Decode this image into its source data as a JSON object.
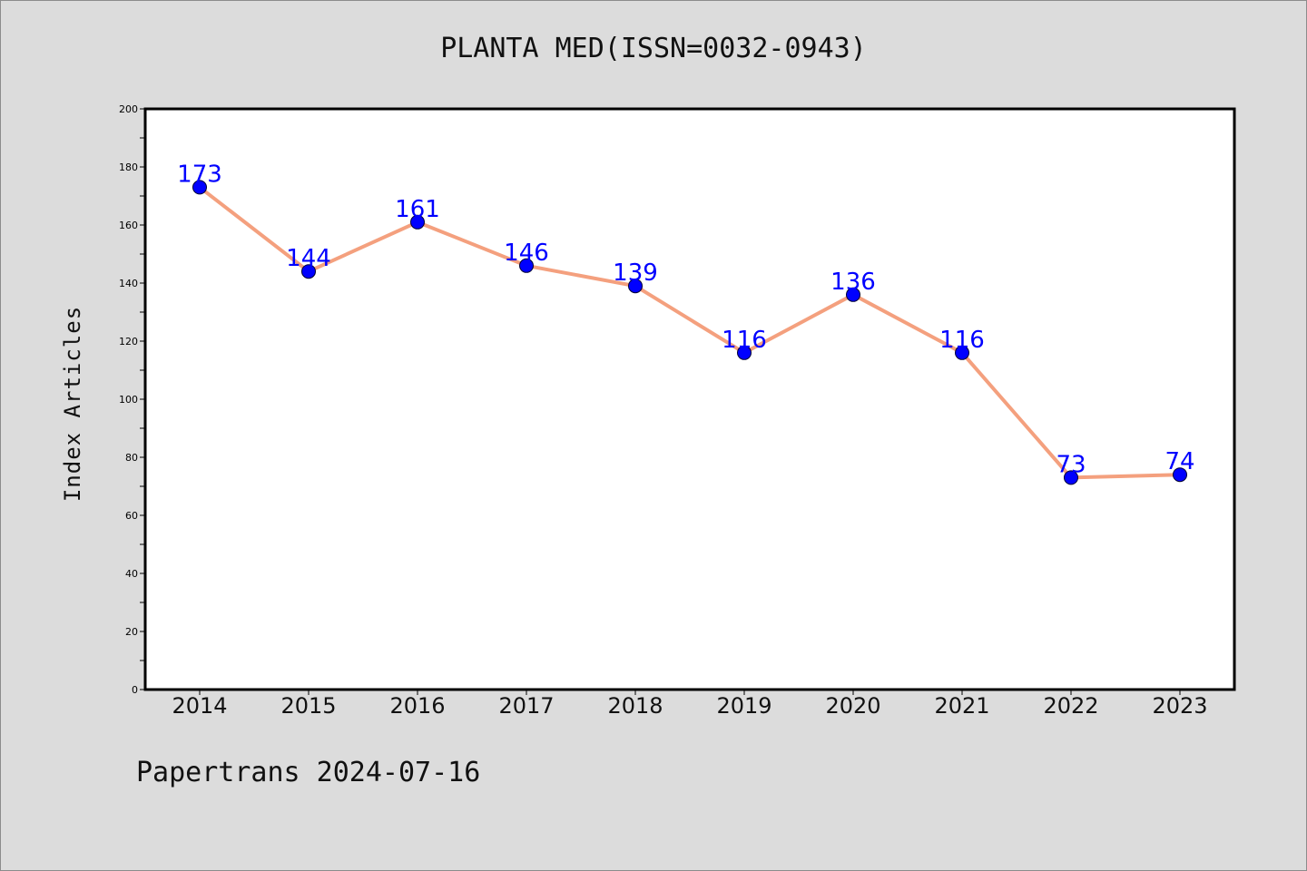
{
  "chart_data": {
    "type": "line",
    "title": "PLANTA MED(ISSN=0032-0943)",
    "xlabel": "",
    "ylabel": "Index Articles",
    "categories": [
      "2014",
      "2015",
      "2016",
      "2017",
      "2018",
      "2019",
      "2020",
      "2021",
      "2022",
      "2023"
    ],
    "values": [
      173,
      144,
      161,
      146,
      139,
      116,
      136,
      116,
      73,
      74
    ],
    "ylim": [
      0,
      200
    ],
    "yticks": [
      0,
      20,
      40,
      60,
      80,
      100,
      120,
      140,
      160,
      180,
      200
    ],
    "grid": false,
    "legend": "none",
    "colors": {
      "line": "#f4a07e",
      "marker": "#0000ff",
      "label": "#0000ff",
      "axes": "#000000",
      "plot_background": "#ffffff",
      "page_background": "#dcdcdc"
    }
  },
  "footer": "Papertrans 2024-07-16"
}
